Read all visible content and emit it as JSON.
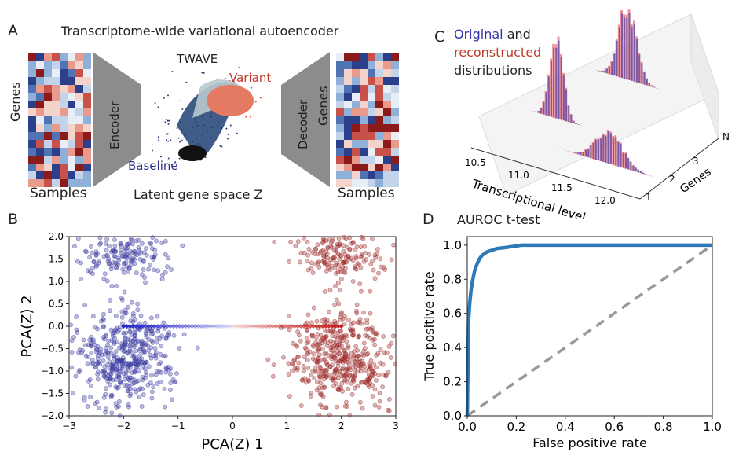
{
  "panel_a": {
    "letter": "A",
    "title": "Transcriptome-wide variational autoencoder",
    "left_genes": "Genes",
    "left_samples": "Samples",
    "encoder": "Encoder",
    "decoder": "Decoder",
    "twave": "TWAVE",
    "variant": "Variant",
    "baseline": "Baseline",
    "latent": "Latent gene space Z",
    "right_genes": "Genes",
    "right_samples": "Samples",
    "colors": {
      "blue": "#2a2f8f",
      "red": "#c0392b",
      "trapezoid": "#8c8c8c"
    }
  },
  "panel_c": {
    "letter": "C",
    "legend_word1": "Original",
    "legend_word2": "and",
    "legend_word3": "reconstructed",
    "legend_word4": "distributions",
    "xlabel": "Transcriptional level",
    "xticks": [
      "10.5",
      "11.0",
      "11.5",
      "12.0"
    ],
    "ylabel": "Genes",
    "yticks": [
      "1",
      "2",
      "3",
      "N"
    ],
    "colors": {
      "original": "#3333aa",
      "reconstructed": "#e8707a"
    }
  },
  "chart_data": [
    {
      "panel": "B",
      "type": "scatter",
      "letter": "B",
      "xlabel": "PCA(Z) 1",
      "ylabel": "PCA(Z) 2",
      "xlim": [
        -3,
        3
      ],
      "ylim": [
        -2.0,
        2.0
      ],
      "xticks": [
        "−3",
        "−2",
        "−1",
        "0",
        "1",
        "2",
        "3"
      ],
      "yticks": [
        "−2.0",
        "−1.5",
        "−1.0",
        "−0.5",
        "0.0",
        "0.5",
        "1.0",
        "1.5",
        "2.0"
      ],
      "series": [
        {
          "color": "#3a3aa0",
          "center_upper": [
            -2,
            1.6
          ],
          "center_lower": [
            -2,
            -0.7
          ]
        },
        {
          "color": "#9e2a2a",
          "center_upper": [
            2,
            1.6
          ],
          "center_lower": [
            2,
            -0.7
          ]
        }
      ],
      "trajectory": {
        "x_start": -2,
        "x_end": 2,
        "y": 0.0
      },
      "grid": false
    },
    {
      "panel": "D",
      "type": "line",
      "letter": "D",
      "title": "AUROC t-test",
      "xlabel": "False positive rate",
      "ylabel": "True positive rate",
      "xlim": [
        0,
        1
      ],
      "ylim": [
        0,
        1.05
      ],
      "xticks": [
        "0.0",
        "0.2",
        "0.4",
        "0.6",
        "0.8",
        "1.0"
      ],
      "yticks": [
        "0.0",
        "0.2",
        "0.4",
        "0.6",
        "0.8",
        "1.0"
      ],
      "series": [
        {
          "color": "#2e7ab8",
          "x": [
            0,
            0.005,
            0.01,
            0.015,
            0.02,
            0.03,
            0.04,
            0.05,
            0.06,
            0.08,
            0.1,
            0.12,
            0.15,
            0.2,
            0.22,
            0.3,
            0.5,
            0.7,
            1.0
          ],
          "y": [
            0,
            0.55,
            0.66,
            0.73,
            0.78,
            0.85,
            0.89,
            0.92,
            0.94,
            0.96,
            0.97,
            0.98,
            0.985,
            0.995,
            1.0,
            1.0,
            1.0,
            1.0,
            1.0
          ]
        },
        {
          "color": "#999999",
          "dashed": true,
          "x": [
            0,
            1
          ],
          "y": [
            0,
            1
          ]
        }
      ],
      "grid": false
    }
  ]
}
